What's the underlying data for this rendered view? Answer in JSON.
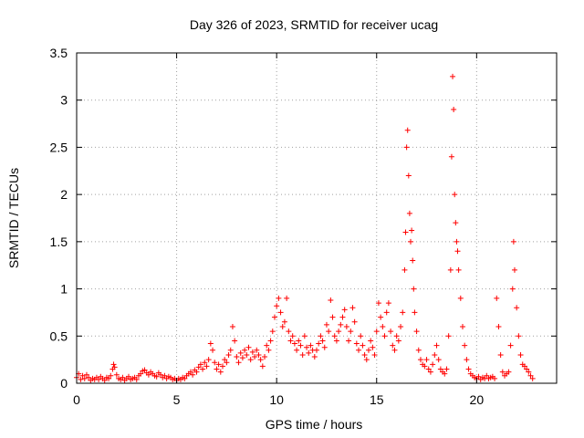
{
  "chart_data": {
    "type": "scatter",
    "title": "Day 326 of 2023, SRMTID for receiver ucag",
    "xlabel": "GPS time / hours",
    "ylabel": "SRMTID / TECUs",
    "xlim": [
      0,
      24
    ],
    "ylim": [
      0,
      3.5
    ],
    "xticks": [
      0,
      5,
      10,
      15,
      20
    ],
    "xtick_labels": [
      "0",
      "5",
      "10",
      "15",
      "20"
    ],
    "yticks": [
      0,
      0.5,
      1,
      1.5,
      2,
      2.5,
      3,
      3.5
    ],
    "ytick_labels": [
      "0",
      "0.5",
      "1",
      "1.5",
      "2",
      "2.5",
      "3",
      "3.5"
    ],
    "grid": true,
    "marker": "+",
    "color": "#ff0000",
    "series": [
      {
        "name": "SRMTID",
        "points": [
          [
            0.0,
            0.06
          ],
          [
            0.1,
            0.1
          ],
          [
            0.2,
            0.04
          ],
          [
            0.3,
            0.08
          ],
          [
            0.4,
            0.05
          ],
          [
            0.5,
            0.09
          ],
          [
            0.6,
            0.06
          ],
          [
            0.7,
            0.03
          ],
          [
            0.8,
            0.05
          ],
          [
            0.9,
            0.04
          ],
          [
            1.0,
            0.06
          ],
          [
            1.1,
            0.04
          ],
          [
            1.2,
            0.07
          ],
          [
            1.3,
            0.05
          ],
          [
            1.4,
            0.03
          ],
          [
            1.5,
            0.06
          ],
          [
            1.6,
            0.05
          ],
          [
            1.7,
            0.08
          ],
          [
            1.8,
            0.15
          ],
          [
            1.85,
            0.2
          ],
          [
            1.9,
            0.17
          ],
          [
            2.0,
            0.09
          ],
          [
            2.1,
            0.05
          ],
          [
            2.2,
            0.04
          ],
          [
            2.3,
            0.06
          ],
          [
            2.4,
            0.03
          ],
          [
            2.5,
            0.05
          ],
          [
            2.6,
            0.07
          ],
          [
            2.7,
            0.04
          ],
          [
            2.8,
            0.05
          ],
          [
            2.9,
            0.06
          ],
          [
            3.0,
            0.04
          ],
          [
            3.1,
            0.08
          ],
          [
            3.2,
            0.1
          ],
          [
            3.3,
            0.13
          ],
          [
            3.4,
            0.14
          ],
          [
            3.5,
            0.11
          ],
          [
            3.6,
            0.09
          ],
          [
            3.7,
            0.12
          ],
          [
            3.8,
            0.1
          ],
          [
            3.9,
            0.08
          ],
          [
            4.0,
            0.07
          ],
          [
            4.1,
            0.11
          ],
          [
            4.2,
            0.09
          ],
          [
            4.3,
            0.06
          ],
          [
            4.4,
            0.08
          ],
          [
            4.5,
            0.05
          ],
          [
            4.6,
            0.07
          ],
          [
            4.7,
            0.06
          ],
          [
            4.8,
            0.04
          ],
          [
            4.9,
            0.05
          ],
          [
            5.0,
            0.03
          ],
          [
            5.1,
            0.05
          ],
          [
            5.2,
            0.04
          ],
          [
            5.3,
            0.06
          ],
          [
            5.4,
            0.05
          ],
          [
            5.5,
            0.08
          ],
          [
            5.6,
            0.1
          ],
          [
            5.7,
            0.12
          ],
          [
            5.8,
            0.09
          ],
          [
            5.9,
            0.14
          ],
          [
            6.0,
            0.12
          ],
          [
            6.1,
            0.17
          ],
          [
            6.2,
            0.2
          ],
          [
            6.3,
            0.15
          ],
          [
            6.4,
            0.22
          ],
          [
            6.5,
            0.18
          ],
          [
            6.6,
            0.25
          ],
          [
            6.7,
            0.42
          ],
          [
            6.8,
            0.35
          ],
          [
            6.9,
            0.22
          ],
          [
            7.0,
            0.15
          ],
          [
            7.1,
            0.2
          ],
          [
            7.2,
            0.12
          ],
          [
            7.3,
            0.18
          ],
          [
            7.4,
            0.25
          ],
          [
            7.5,
            0.22
          ],
          [
            7.6,
            0.3
          ],
          [
            7.7,
            0.35
          ],
          [
            7.8,
            0.6
          ],
          [
            7.9,
            0.45
          ],
          [
            8.0,
            0.28
          ],
          [
            8.1,
            0.22
          ],
          [
            8.2,
            0.32
          ],
          [
            8.3,
            0.27
          ],
          [
            8.4,
            0.35
          ],
          [
            8.5,
            0.3
          ],
          [
            8.6,
            0.38
          ],
          [
            8.7,
            0.25
          ],
          [
            8.8,
            0.33
          ],
          [
            8.9,
            0.28
          ],
          [
            9.0,
            0.35
          ],
          [
            9.1,
            0.3
          ],
          [
            9.2,
            0.25
          ],
          [
            9.3,
            0.18
          ],
          [
            9.4,
            0.28
          ],
          [
            9.5,
            0.4
          ],
          [
            9.6,
            0.35
          ],
          [
            9.7,
            0.45
          ],
          [
            9.8,
            0.55
          ],
          [
            9.9,
            0.7
          ],
          [
            10.0,
            0.82
          ],
          [
            10.1,
            0.9
          ],
          [
            10.2,
            0.75
          ],
          [
            10.3,
            0.6
          ],
          [
            10.4,
            0.65
          ],
          [
            10.5,
            0.9
          ],
          [
            10.6,
            0.55
          ],
          [
            10.7,
            0.45
          ],
          [
            10.8,
            0.5
          ],
          [
            10.9,
            0.42
          ],
          [
            11.0,
            0.35
          ],
          [
            11.1,
            0.45
          ],
          [
            11.2,
            0.4
          ],
          [
            11.3,
            0.3
          ],
          [
            11.4,
            0.5
          ],
          [
            11.5,
            0.38
          ],
          [
            11.6,
            0.32
          ],
          [
            11.7,
            0.4
          ],
          [
            11.8,
            0.35
          ],
          [
            11.9,
            0.28
          ],
          [
            12.0,
            0.35
          ],
          [
            12.1,
            0.42
          ],
          [
            12.2,
            0.5
          ],
          [
            12.3,
            0.45
          ],
          [
            12.4,
            0.38
          ],
          [
            12.5,
            0.62
          ],
          [
            12.6,
            0.55
          ],
          [
            12.7,
            0.88
          ],
          [
            12.8,
            0.7
          ],
          [
            12.9,
            0.5
          ],
          [
            13.0,
            0.45
          ],
          [
            13.1,
            0.55
          ],
          [
            13.2,
            0.62
          ],
          [
            13.3,
            0.7
          ],
          [
            13.4,
            0.78
          ],
          [
            13.5,
            0.6
          ],
          [
            13.6,
            0.45
          ],
          [
            13.7,
            0.55
          ],
          [
            13.8,
            0.8
          ],
          [
            13.9,
            0.65
          ],
          [
            14.0,
            0.42
          ],
          [
            14.1,
            0.35
          ],
          [
            14.2,
            0.5
          ],
          [
            14.3,
            0.4
          ],
          [
            14.4,
            0.3
          ],
          [
            14.5,
            0.25
          ],
          [
            14.6,
            0.35
          ],
          [
            14.7,
            0.45
          ],
          [
            14.8,
            0.38
          ],
          [
            14.9,
            0.3
          ],
          [
            15.0,
            0.55
          ],
          [
            15.1,
            0.85
          ],
          [
            15.2,
            0.7
          ],
          [
            15.3,
            0.6
          ],
          [
            15.4,
            0.5
          ],
          [
            15.5,
            0.75
          ],
          [
            15.6,
            0.85
          ],
          [
            15.7,
            0.55
          ],
          [
            15.8,
            0.4
          ],
          [
            15.9,
            0.35
          ],
          [
            16.0,
            0.5
          ],
          [
            16.1,
            0.45
          ],
          [
            16.2,
            0.6
          ],
          [
            16.3,
            0.75
          ],
          [
            16.4,
            1.2
          ],
          [
            16.45,
            1.6
          ],
          [
            16.5,
            2.5
          ],
          [
            16.55,
            2.68
          ],
          [
            16.6,
            2.2
          ],
          [
            16.65,
            1.8
          ],
          [
            16.7,
            1.5
          ],
          [
            16.75,
            1.62
          ],
          [
            16.8,
            1.3
          ],
          [
            16.85,
            1.0
          ],
          [
            16.9,
            0.75
          ],
          [
            17.0,
            0.55
          ],
          [
            17.1,
            0.35
          ],
          [
            17.2,
            0.25
          ],
          [
            17.3,
            0.2
          ],
          [
            17.4,
            0.18
          ],
          [
            17.5,
            0.25
          ],
          [
            17.6,
            0.15
          ],
          [
            17.7,
            0.12
          ],
          [
            17.8,
            0.2
          ],
          [
            17.9,
            0.3
          ],
          [
            18.0,
            0.4
          ],
          [
            18.1,
            0.25
          ],
          [
            18.2,
            0.15
          ],
          [
            18.3,
            0.12
          ],
          [
            18.4,
            0.1
          ],
          [
            18.5,
            0.15
          ],
          [
            18.6,
            0.5
          ],
          [
            18.7,
            1.2
          ],
          [
            18.75,
            2.4
          ],
          [
            18.8,
            3.25
          ],
          [
            18.85,
            2.9
          ],
          [
            18.9,
            2.0
          ],
          [
            18.95,
            1.7
          ],
          [
            19.0,
            1.5
          ],
          [
            19.05,
            1.4
          ],
          [
            19.1,
            1.2
          ],
          [
            19.2,
            0.9
          ],
          [
            19.3,
            0.6
          ],
          [
            19.4,
            0.4
          ],
          [
            19.5,
            0.25
          ],
          [
            19.6,
            0.15
          ],
          [
            19.7,
            0.1
          ],
          [
            19.8,
            0.08
          ],
          [
            19.9,
            0.06
          ],
          [
            20.0,
            0.05
          ],
          [
            20.1,
            0.07
          ],
          [
            20.2,
            0.04
          ],
          [
            20.3,
            0.06
          ],
          [
            20.4,
            0.05
          ],
          [
            20.5,
            0.08
          ],
          [
            20.6,
            0.05
          ],
          [
            20.7,
            0.06
          ],
          [
            20.8,
            0.07
          ],
          [
            20.9,
            0.05
          ],
          [
            21.0,
            0.9
          ],
          [
            21.1,
            0.6
          ],
          [
            21.2,
            0.3
          ],
          [
            21.3,
            0.12
          ],
          [
            21.4,
            0.08
          ],
          [
            21.5,
            0.1
          ],
          [
            21.6,
            0.12
          ],
          [
            21.7,
            0.4
          ],
          [
            21.8,
            1.0
          ],
          [
            21.85,
            1.5
          ],
          [
            21.9,
            1.2
          ],
          [
            22.0,
            0.8
          ],
          [
            22.1,
            0.5
          ],
          [
            22.2,
            0.3
          ],
          [
            22.3,
            0.2
          ],
          [
            22.4,
            0.18
          ],
          [
            22.5,
            0.15
          ],
          [
            22.6,
            0.12
          ],
          [
            22.7,
            0.08
          ],
          [
            22.8,
            0.05
          ]
        ]
      }
    ]
  }
}
